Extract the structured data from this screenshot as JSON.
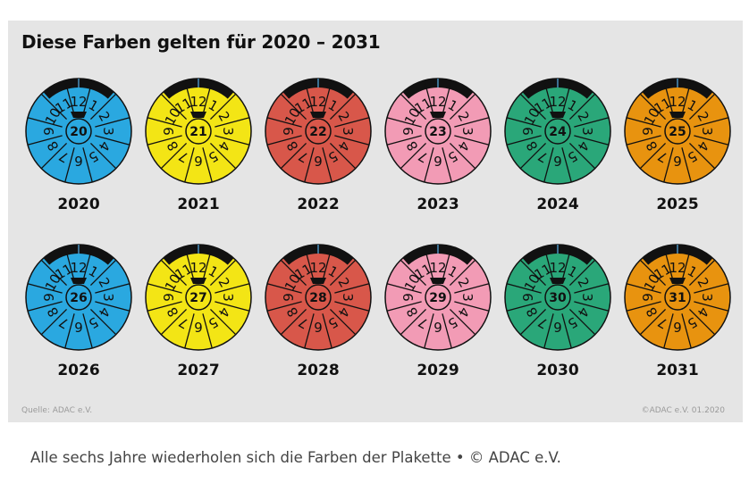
{
  "title": "Diese Farben gelten für 2020 – 2031",
  "source": "Quelle: ADAC e.V.",
  "copyright": "©ADAC e.V.  01.2020",
  "caption": "Alle sechs Jahre wiederholen sich die Farben der Plakette • © ADAC e.V.",
  "badge_numbers": [
    "1",
    "12",
    "11",
    "10",
    "9",
    "8",
    "7",
    "6",
    "5",
    "4",
    "3",
    "2"
  ],
  "badges": [
    {
      "year": "2020",
      "number": "20",
      "color": "#2aa8e0"
    },
    {
      "year": "2021",
      "number": "21",
      "color": "#f3e515"
    },
    {
      "year": "2022",
      "number": "22",
      "color": "#d8574a"
    },
    {
      "year": "2023",
      "number": "23",
      "color": "#f29bb5"
    },
    {
      "year": "2024",
      "number": "24",
      "color": "#2aa779"
    },
    {
      "year": "2025",
      "number": "25",
      "color": "#e8930f"
    },
    {
      "year": "2026",
      "number": "26",
      "color": "#2aa8e0"
    },
    {
      "year": "2027",
      "number": "27",
      "color": "#f3e515"
    },
    {
      "year": "2028",
      "number": "28",
      "color": "#d8574a"
    },
    {
      "year": "2029",
      "number": "29",
      "color": "#f29bb5"
    },
    {
      "year": "2030",
      "number": "30",
      "color": "#2aa779"
    },
    {
      "year": "2031",
      "number": "31",
      "color": "#e8930f"
    }
  ]
}
